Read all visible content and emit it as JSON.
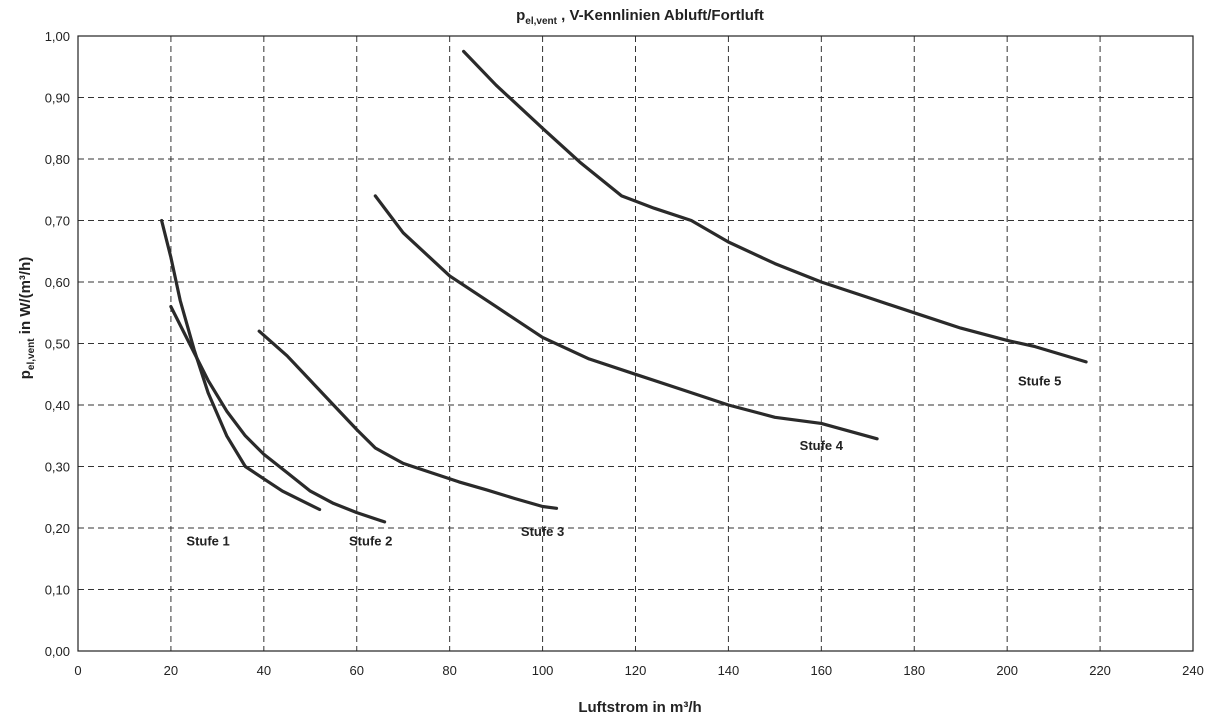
{
  "chart_data": {
    "type": "line",
    "title_main": "V-Kennlinien Abluft/Fortluft",
    "title_symbol": "p",
    "title_symbol_sub": "el,vent",
    "ylabel_symbol": "p",
    "ylabel_sub": "el,vent",
    "ylabel_rest": " in W/(m³/h)",
    "xlabel": "Luftstrom in m³/h",
    "xlim": [
      0,
      240
    ],
    "ylim": [
      0,
      1.0
    ],
    "x_ticks": [
      "0",
      "20",
      "40",
      "60",
      "80",
      "100",
      "120",
      "140",
      "160",
      "180",
      "200",
      "220",
      "240"
    ],
    "y_ticks": [
      "0,00",
      "0,10",
      "0,20",
      "0,30",
      "0,40",
      "0,50",
      "0,60",
      "0,70",
      "0,80",
      "0,90",
      "1,00"
    ],
    "grid": true,
    "series": [
      {
        "name": "Stufe 1",
        "x": [
          18,
          20,
          22,
          25,
          28,
          32,
          36,
          40,
          44,
          48,
          52
        ],
        "y": [
          0.7,
          0.64,
          0.57,
          0.49,
          0.42,
          0.35,
          0.3,
          0.28,
          0.26,
          0.245,
          0.23
        ]
      },
      {
        "name": "Stufe 2",
        "x": [
          20,
          24,
          28,
          32,
          36,
          40,
          45,
          50,
          55,
          60,
          66
        ],
        "y": [
          0.56,
          0.5,
          0.44,
          0.39,
          0.35,
          0.32,
          0.29,
          0.26,
          0.24,
          0.225,
          0.21
        ]
      },
      {
        "name": "Stufe 3",
        "x": [
          39,
          45,
          50,
          55,
          60,
          64,
          70,
          76,
          82,
          88,
          94,
          100,
          103
        ],
        "y": [
          0.52,
          0.48,
          0.44,
          0.4,
          0.36,
          0.33,
          0.305,
          0.29,
          0.275,
          0.262,
          0.248,
          0.235,
          0.232
        ]
      },
      {
        "name": "Stufe 4",
        "x": [
          64,
          70,
          80,
          90,
          100,
          110,
          120,
          130,
          140,
          150,
          160,
          172
        ],
        "y": [
          0.74,
          0.68,
          0.61,
          0.56,
          0.51,
          0.475,
          0.45,
          0.425,
          0.4,
          0.38,
          0.37,
          0.345
        ]
      },
      {
        "name": "Stufe 5",
        "x": [
          83,
          90,
          100,
          108,
          117,
          124,
          132,
          140,
          150,
          160,
          170,
          180,
          190,
          200,
          206,
          217
        ],
        "y": [
          0.975,
          0.92,
          0.85,
          0.795,
          0.74,
          0.72,
          0.7,
          0.665,
          0.63,
          0.6,
          0.575,
          0.55,
          0.525,
          0.505,
          0.495,
          0.47
        ]
      }
    ]
  }
}
